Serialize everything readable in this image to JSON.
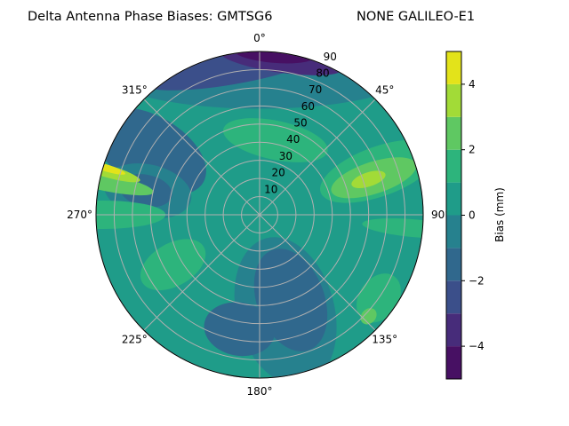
{
  "chart_data": {
    "type": "contour",
    "projection": "polar",
    "title_left": "Delta Antenna Phase Biases: GMTSG6",
    "title_right": "NONE GALILEO-E1",
    "theta_direction": "clockwise",
    "theta_zero": "north",
    "theta_ticks": [
      "0°",
      "45°",
      "90°",
      "135°",
      "180°",
      "225°",
      "270°",
      "315°"
    ],
    "r_ticks": [
      "10",
      "20",
      "30",
      "40",
      "50",
      "60",
      "70",
      "80",
      "90"
    ],
    "rlim": [
      0,
      90
    ],
    "grid": true,
    "levels": [
      -5,
      -4,
      -3,
      -2,
      -1,
      0,
      1,
      2,
      3,
      4,
      5
    ],
    "level_colors": [
      "#471063",
      "#472c7a",
      "#3b4f8a",
      "#30688d",
      "#26818e",
      "#1f9c89",
      "#2db47c",
      "#5fc862",
      "#a2db37",
      "#e3e31a"
    ],
    "colormap": "viridis",
    "background_level": 0.5,
    "regions": [
      {
        "az": 0,
        "r": 78,
        "value": -0.5
      },
      {
        "az": 350,
        "r": 84,
        "value": -2.5
      },
      {
        "az": 8,
        "r": 86,
        "value": -3.5
      },
      {
        "az": 5,
        "r": 89,
        "value": -4.5
      },
      {
        "az": 300,
        "r": 70,
        "value": -1.5
      },
      {
        "az": 282,
        "r": 63,
        "value": -0.5
      },
      {
        "az": 282,
        "r": 64,
        "value": -1.5
      },
      {
        "az": 12,
        "r": 42,
        "value": 1.5
      },
      {
        "az": 70,
        "r": 70,
        "value": 1.5
      },
      {
        "az": 72,
        "r": 66,
        "value": 2.5
      },
      {
        "az": 72,
        "r": 63,
        "value": 3.5
      },
      {
        "az": 95,
        "r": 86,
        "value": 1.5
      },
      {
        "az": 165,
        "r": 55,
        "value": -0.5
      },
      {
        "az": 160,
        "r": 50,
        "value": -1.5
      },
      {
        "az": 190,
        "r": 64,
        "value": -1.5
      },
      {
        "az": 125,
        "r": 80,
        "value": 1.5
      },
      {
        "az": 133,
        "r": 82,
        "value": 2.5
      },
      {
        "az": 240,
        "r": 55,
        "value": 1.5
      },
      {
        "az": 270,
        "r": 86,
        "value": 1.5
      },
      {
        "az": 282,
        "r": 88,
        "value": 2.5
      },
      {
        "az": 286,
        "r": 88,
        "value": 3.5
      },
      {
        "az": 287,
        "r": 89,
        "value": 4.5
      }
    ],
    "colorbar": {
      "label": "Bias (mm)",
      "ticks": [
        "−4",
        "−2",
        "0",
        "2",
        "4"
      ],
      "tick_values": [
        -4,
        -2,
        0,
        2,
        4
      ],
      "range": [
        -5,
        5
      ]
    }
  }
}
